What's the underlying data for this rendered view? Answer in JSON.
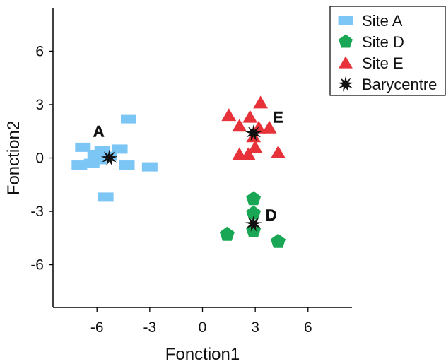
{
  "chart_data": {
    "type": "scatter",
    "title": "",
    "xlabel": "Fonction1",
    "ylabel": "Fonction2",
    "xlim": [
      -8.5,
      8.5
    ],
    "ylim": [
      -8.4,
      8.4
    ],
    "xticks": [
      -6,
      -3,
      0,
      3,
      6
    ],
    "yticks": [
      -6,
      -3,
      0,
      3,
      6
    ],
    "xtick_labels": [
      "-6",
      "-3",
      "0",
      "3",
      "6"
    ],
    "ytick_labels": [
      "-6",
      "-3",
      "0",
      "3",
      "6"
    ],
    "grid": false,
    "legend_position": "top-right",
    "series": [
      {
        "name": "Site A",
        "marker": "rectangle",
        "color": "#7cc6f6",
        "points": [
          [
            -4.2,
            2.2
          ],
          [
            -6.8,
            0.6
          ],
          [
            -5.7,
            0.4
          ],
          [
            -4.7,
            0.5
          ],
          [
            -6.1,
            0.2
          ],
          [
            -5.3,
            0.1
          ],
          [
            -7.0,
            -0.4
          ],
          [
            -6.3,
            -0.3
          ],
          [
            -5.9,
            -0.1
          ],
          [
            -4.3,
            -0.4
          ],
          [
            -3.0,
            -0.5
          ],
          [
            -5.5,
            -2.2
          ]
        ]
      },
      {
        "name": "Site D",
        "marker": "pentagon",
        "color": "#1aa755",
        "points": [
          [
            2.9,
            -2.3
          ],
          [
            2.9,
            -3.1
          ],
          [
            2.9,
            -4.1
          ],
          [
            1.4,
            -4.3
          ],
          [
            4.3,
            -4.7
          ]
        ]
      },
      {
        "name": "Site E",
        "marker": "triangle",
        "color": "#e8323a",
        "points": [
          [
            3.3,
            3.1
          ],
          [
            1.5,
            2.4
          ],
          [
            2.7,
            2.3
          ],
          [
            2.1,
            1.8
          ],
          [
            3.2,
            1.7
          ],
          [
            3.8,
            1.7
          ],
          [
            2.9,
            1.2
          ],
          [
            3.0,
            0.6
          ],
          [
            2.1,
            0.2
          ],
          [
            2.6,
            0.2
          ],
          [
            4.3,
            0.3
          ]
        ]
      },
      {
        "name": "Barycentre",
        "marker": "star",
        "color": "#111111",
        "points": [
          [
            -5.3,
            0.0
          ],
          [
            2.9,
            1.4
          ],
          [
            2.9,
            -3.7
          ]
        ]
      }
    ],
    "annotations": [
      {
        "text": "A",
        "x": -5.9,
        "y": 1.5
      },
      {
        "text": "E",
        "x": 4.3,
        "y": 2.3
      },
      {
        "text": "D",
        "x": 3.9,
        "y": -3.2
      }
    ]
  }
}
